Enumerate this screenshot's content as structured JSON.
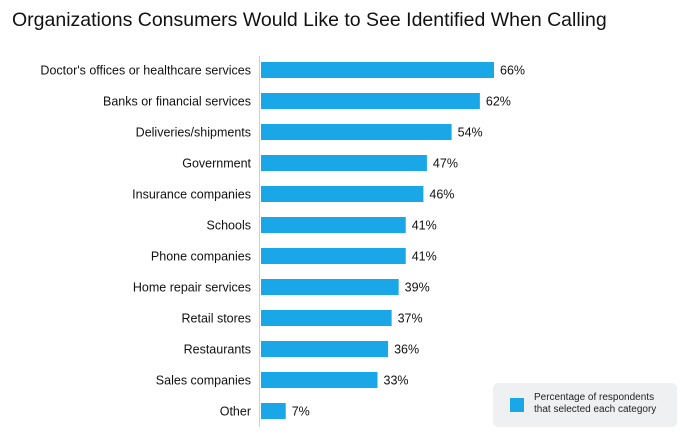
{
  "chart_data": {
    "type": "bar",
    "orientation": "horizontal",
    "title": "Organizations Consumers Would Like to See Identified When Calling",
    "categories": [
      "Doctor's offices or healthcare services",
      "Banks or financial services",
      "Deliveries/shipments",
      "Government",
      "Insurance companies",
      "Schools",
      "Phone companies",
      "Home repair services",
      "Retail stores",
      "Restaurants",
      "Sales companies",
      "Other"
    ],
    "values": [
      66,
      62,
      54,
      47,
      46,
      41,
      41,
      39,
      37,
      36,
      33,
      7
    ],
    "value_labels": [
      "66%",
      "62%",
      "54%",
      "47%",
      "46%",
      "41%",
      "41%",
      "39%",
      "37%",
      "36%",
      "33%",
      "7%"
    ],
    "series": [
      {
        "name": "Percentage of respondents that selected each category",
        "values": [
          66,
          62,
          54,
          47,
          46,
          41,
          41,
          39,
          37,
          36,
          33,
          7
        ]
      }
    ],
    "xlim": [
      0,
      100
    ],
    "grid": false,
    "legend_position": "bottom-right",
    "bar_color": "#1aa7e8"
  }
}
